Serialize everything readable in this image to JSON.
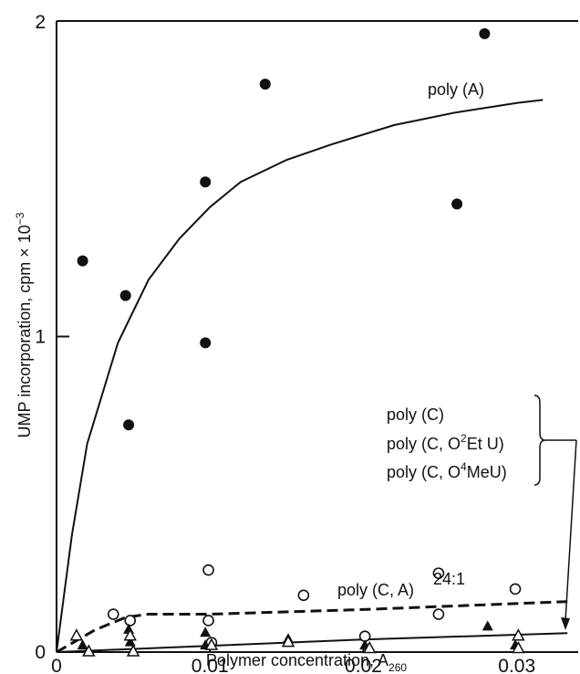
{
  "chart_data": {
    "type": "scatter",
    "xlabel": "Polymer concentration, A",
    "xlabel_sub": "260",
    "ylabel": "UMP incorporation, cpm × 10",
    "ylabel_sup": "−3",
    "xlim": [
      0,
      0.034
    ],
    "ylim": [
      0,
      2
    ],
    "x_ticks": [
      {
        "value": 0,
        "label": "0"
      },
      {
        "value": 0.01,
        "label": "0.01"
      },
      {
        "value": 0.02,
        "label": "0.02"
      },
      {
        "value": 0.03,
        "label": "0.03"
      }
    ],
    "y_ticks": [
      {
        "value": 0,
        "label": "0"
      },
      {
        "value": 1,
        "label": "1"
      },
      {
        "value": 2,
        "label": "2"
      }
    ],
    "grid": false,
    "series": [
      {
        "name": "poly (A)",
        "marker": "filled-circle",
        "points": [
          [
            0.0017,
            1.24
          ],
          [
            0.0045,
            1.13
          ],
          [
            0.0047,
            0.72
          ],
          [
            0.0097,
            1.49
          ],
          [
            0.0097,
            0.98
          ],
          [
            0.0136,
            1.8
          ],
          [
            0.0261,
            1.42
          ],
          [
            0.0279,
            1.96
          ]
        ]
      },
      {
        "name": "poly (C, A) 24:1",
        "marker": "open-circle",
        "points": [
          [
            0.0037,
            0.12
          ],
          [
            0.0048,
            0.1
          ],
          [
            0.0099,
            0.26
          ],
          [
            0.0099,
            0.1
          ],
          [
            0.0101,
            0.03
          ],
          [
            0.0161,
            0.18
          ],
          [
            0.0201,
            0.05
          ],
          [
            0.0249,
            0.25
          ],
          [
            0.0249,
            0.12
          ],
          [
            0.0299,
            0.2
          ]
        ]
      },
      {
        "marker": "filled-triangle",
        "points": [
          [
            0.0017,
            0.02
          ],
          [
            0.0047,
            0.07
          ],
          [
            0.0048,
            0.03
          ],
          [
            0.0097,
            0.06
          ],
          [
            0.0097,
            0.02
          ],
          [
            0.0151,
            0.04
          ],
          [
            0.0201,
            0.02
          ],
          [
            0.0281,
            0.08
          ],
          [
            0.0299,
            0.02
          ]
        ]
      },
      {
        "marker": "open-triangle",
        "points": [
          [
            0.0013,
            0.05
          ],
          [
            0.0021,
            0.0
          ],
          [
            0.0048,
            0.05
          ],
          [
            0.005,
            0.0
          ],
          [
            0.0101,
            0.02
          ],
          [
            0.0151,
            0.03
          ],
          [
            0.0204,
            0.01
          ],
          [
            0.0301,
            0.05
          ],
          [
            0.0301,
            0.01
          ]
        ]
      }
    ],
    "curves": [
      {
        "style": "solid",
        "points": [
          [
            0,
            0
          ],
          [
            0.001,
            0.37
          ],
          [
            0.002,
            0.66
          ],
          [
            0.004,
            0.98
          ],
          [
            0.006,
            1.18
          ],
          [
            0.008,
            1.31
          ],
          [
            0.01,
            1.41
          ],
          [
            0.012,
            1.49
          ],
          [
            0.015,
            1.56
          ],
          [
            0.018,
            1.61
          ],
          [
            0.022,
            1.67
          ],
          [
            0.026,
            1.71
          ],
          [
            0.03,
            1.74
          ],
          [
            0.0317,
            1.75
          ]
        ]
      },
      {
        "style": "dashed",
        "points": [
          [
            0,
            0
          ],
          [
            0.0025,
            0.07
          ],
          [
            0.0045,
            0.11
          ],
          [
            0.006,
            0.12
          ],
          [
            0.01,
            0.12
          ],
          [
            0.02,
            0.135
          ],
          [
            0.0333,
            0.16
          ]
        ]
      },
      {
        "style": "solid",
        "points": [
          [
            0,
            0
          ],
          [
            0.01,
            0.02
          ],
          [
            0.02,
            0.04
          ],
          [
            0.0333,
            0.06
          ]
        ]
      }
    ],
    "annotations": {
      "poly_a": "poly (A)",
      "poly_ca": "poly (C, A)",
      "poly_ca_ratio": "24:1",
      "bracket_items": [
        {
          "pre": "poly (C)",
          "sup": "",
          "post": ""
        },
        {
          "pre": "poly (C, O",
          "sup": "2",
          "post": "Et U)"
        },
        {
          "pre": "poly (C, O",
          "sup": "4",
          "post": "MeU)"
        }
      ]
    }
  }
}
